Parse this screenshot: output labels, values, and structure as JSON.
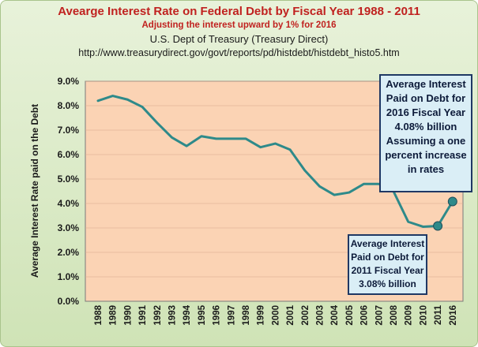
{
  "header": {
    "title": "Avearge Interest Rate on Federal Debt by Fiscal Year 1988 - 2011",
    "subtitle": "Adjusting the interest upward by 1% for 2016",
    "source": "U.S. Dept of Treasury (Treasury Direct)",
    "url": "http://www.treasurydirect.gov/govt/reports/pd/histdebt/histdebt_histo5.htm"
  },
  "callouts": {
    "fy2016": [
      "Average Interest",
      "Paid on Debt for",
      "2016 Fiscal Year",
      "4.08% billion",
      "Assuming a one",
      "percent increase",
      "in rates"
    ],
    "fy2011": [
      "Average Interest",
      "Paid on Debt for",
      "2011 Fiscal Year",
      "3.08% billion"
    ]
  },
  "colors": {
    "line": "#2e8a8a",
    "plot_bg": "#fbd3b4",
    "title": "#c0211f",
    "callout_border": "#1f3864",
    "callout_bg": "#daeef6",
    "grid": "#d9a88a"
  },
  "chart_data": {
    "type": "line",
    "title": "Avearge Interest Rate on Federal Debt by Fiscal Year 1988 - 2011",
    "xlabel": "",
    "ylabel": "Average Interest Rate paid on the Debt",
    "categories": [
      "1988",
      "1989",
      "1990",
      "1991",
      "1992",
      "1993",
      "1994",
      "1995",
      "1996",
      "1997",
      "1998",
      "1999",
      "2000",
      "2001",
      "2002",
      "2003",
      "2004",
      "2005",
      "2006",
      "2007",
      "2008",
      "2009",
      "2010",
      "2011",
      "2016"
    ],
    "values": [
      8.2,
      8.4,
      8.25,
      7.95,
      7.3,
      6.7,
      6.35,
      6.75,
      6.65,
      6.65,
      6.65,
      6.3,
      6.45,
      6.2,
      5.35,
      4.7,
      4.35,
      4.45,
      4.8,
      4.8,
      4.5,
      3.25,
      3.05,
      3.08,
      4.08
    ],
    "highlighted": [
      "2011",
      "2016"
    ],
    "ylim": [
      0,
      9
    ],
    "yticks": [
      0,
      1,
      2,
      3,
      4,
      5,
      6,
      7,
      8,
      9
    ],
    "ytick_labels": [
      "0.0%",
      "1.0%",
      "2.0%",
      "3.0%",
      "4.0%",
      "5.0%",
      "6.0%",
      "7.0%",
      "8.0%",
      "9.0%"
    ],
    "grid": true
  }
}
